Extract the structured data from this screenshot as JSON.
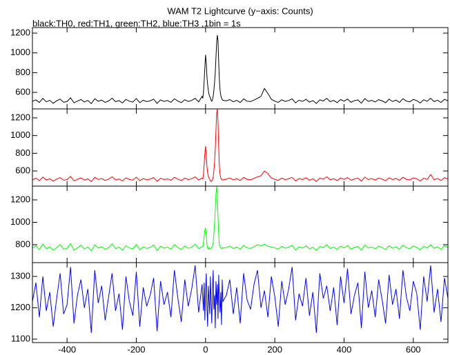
{
  "chart_data": {
    "type": "line",
    "title": "WAM T2 Lightcurve (y−axis: Counts)",
    "subtitle": "black:TH0, red:TH1, green:TH2, blue:TH3 ,1bin = 1s",
    "xlim": [
      -500,
      700
    ],
    "xticks": [
      -400,
      -200,
      0,
      200,
      400,
      600
    ],
    "x": [
      -500,
      -490,
      -480,
      -470,
      -460,
      -450,
      -440,
      -430,
      -420,
      -410,
      -400,
      -390,
      -380,
      -370,
      -360,
      -350,
      -340,
      -330,
      -320,
      -310,
      -300,
      -290,
      -280,
      -270,
      -260,
      -250,
      -240,
      -230,
      -220,
      -210,
      -200,
      -190,
      -180,
      -170,
      -160,
      -150,
      -140,
      -130,
      -120,
      -110,
      -100,
      -90,
      -80,
      -70,
      -60,
      -50,
      -40,
      -30,
      -20,
      -10,
      -8,
      -6,
      -4,
      -2,
      0,
      2,
      4,
      6,
      8,
      10,
      12,
      14,
      16,
      18,
      20,
      22,
      24,
      26,
      28,
      30,
      32,
      34,
      36,
      38,
      40,
      42,
      44,
      46,
      48,
      50,
      60,
      70,
      80,
      90,
      100,
      110,
      120,
      130,
      140,
      150,
      160,
      170,
      180,
      190,
      200,
      210,
      220,
      230,
      240,
      250,
      260,
      270,
      280,
      290,
      300,
      310,
      320,
      330,
      340,
      350,
      360,
      370,
      380,
      390,
      400,
      410,
      420,
      430,
      440,
      450,
      460,
      470,
      480,
      490,
      500,
      510,
      520,
      530,
      540,
      550,
      560,
      570,
      580,
      590,
      600,
      610,
      620,
      630,
      640,
      650,
      660,
      670,
      680,
      690,
      700
    ],
    "panels": [
      {
        "ylim": [
          433,
          1256
        ],
        "yticks": [
          600,
          800,
          1000,
          1200
        ],
        "series": [
          {
            "color": "#000000",
            "values": [
              510,
              525,
              498,
              540,
              505,
              520,
              490,
              515,
              532,
              500,
              508,
              545,
              495,
              512,
              528,
              503,
              519,
              487,
              536,
              510,
              522,
              499,
              514,
              541,
              506,
              517,
              493,
              529,
              511,
              502,
              538,
              496,
              521,
              507,
              515,
              532,
              489,
              524,
              509,
              518,
              500,
              535,
              513,
              497,
              526,
              508,
              519,
              540,
              504,
              560,
              540,
              600,
              720,
              850,
              980,
              900,
              760,
              680,
              620,
              580,
              560,
              540,
              520,
              510,
              530,
              560,
              620,
              700,
              800,
              950,
              1100,
              1180,
              1120,
              900,
              720,
              620,
              570,
              545,
              530,
              520,
              515,
              528,
              505,
              520,
              498,
              534,
              511,
              507,
              523,
              540,
              560,
              640,
              590,
              530,
              512,
              499,
              526,
              508,
              518,
              535,
              494,
              521,
              509,
              530,
              502,
              517,
              488,
              525,
              513,
              540,
              506,
              519,
              497,
              528,
              511,
              533,
              500,
              516,
              524,
              491,
              538,
              509,
              520,
              503,
              527,
              514,
              496,
              531,
              508,
              522,
              499,
              536,
              512,
              505,
              529,
              517,
              493,
              526,
              510,
              540,
              507,
              521,
              498,
              530,
              515
            ]
          }
        ]
      },
      {
        "ylim": [
          429,
          1301
        ],
        "yticks": [
          600,
          800,
          1000,
          1200
        ],
        "series": [
          {
            "color": "#ff0000",
            "values": [
              500,
              518,
              490,
              532,
              497,
              512,
              485,
              508,
              526,
              495,
              503,
              538,
              488,
              506,
              522,
              497,
              511,
              480,
              529,
              504,
              515,
              493,
              508,
              534,
              500,
              510,
              487,
              522,
              505,
              496,
              531,
              490,
              514,
              501,
              509,
              525,
              483,
              517,
              503,
              511,
              494,
              528,
              507,
              491,
              519,
              502,
              513,
              533,
              498,
              520,
              510,
              560,
              680,
              800,
              880,
              780,
              650,
              580,
              540,
              520,
              505,
              490,
              480,
              485,
              500,
              530,
              600,
              700,
              850,
              1050,
              1250,
              1300,
              1150,
              850,
              650,
              560,
              520,
              505,
              498,
              500,
              508,
              521,
              499,
              514,
              492,
              527,
              505,
              500,
              517,
              533,
              545,
              600,
              570,
              520,
              506,
              493,
              519,
              502,
              512,
              528,
              488,
              515,
              503,
              523,
              496,
              511,
              482,
              519,
              507,
              534,
              500,
              513,
              491,
              521,
              505,
              526,
              494,
              510,
              518,
              485,
              531,
              503,
              514,
              497,
              520,
              508,
              490,
              524,
              502,
              516,
              493,
              529,
              506,
              499,
              522,
              511,
              487,
              519,
              504,
              560,
              501,
              515,
              492,
              524,
              509
            ]
          }
        ]
      },
      {
        "ylim": [
          640,
          1323
        ],
        "yticks": [
          800,
          1000,
          1200
        ],
        "series": [
          {
            "color": "#00ff00",
            "values": [
              770,
              790,
              755,
              805,
              765,
              780,
              750,
              775,
              800,
              760,
              768,
              810,
              752,
              772,
              795,
              763,
              779,
              745,
              800,
              770,
              782,
              758,
              774,
              808,
              765,
              777,
              752,
              790,
              771,
              762,
              803,
              755,
              781,
              767,
              775,
              797,
              748,
              786,
              769,
              778,
              760,
              800,
              773,
              757,
              788,
              768,
              779,
              805,
              764,
              782,
              780,
              820,
              880,
              930,
              950,
              880,
              800,
              770,
              760,
              775,
              765,
              760,
              770,
              780,
              790,
              820,
              900,
              1000,
              1100,
              1250,
              1320,
              1250,
              1050,
              880,
              800,
              780,
              770,
              765,
              775,
              770,
              775,
              788,
              765,
              780,
              758,
              795,
              771,
              767,
              783,
              800,
              790,
              805,
              785,
              780,
              772,
              759,
              786,
              768,
              778,
              795,
              754,
              781,
              769,
              790,
              762,
              777,
              748,
              785,
              773,
              800,
              766,
              779,
              757,
              788,
              771,
              793,
              760,
              776,
              784,
              751,
              798,
              769,
              780,
              763,
              787,
              774,
              756,
              791,
              768,
              782,
              759,
              796,
              772,
              765,
              789,
              777,
              753,
              786,
              770,
              800,
              767,
              781,
              758,
              790,
              775
            ]
          }
        ]
      },
      {
        "ylim": [
          1089,
          1344
        ],
        "yticks": [
          1100,
          1200,
          1300
        ],
        "series": [
          {
            "color": "#0000ff",
            "values": [
              1220,
              1280,
              1170,
              1300,
              1190,
              1250,
              1140,
              1230,
              1310,
              1180,
              1210,
              1330,
              1150,
              1240,
              1290,
              1200,
              1260,
              1120,
              1320,
              1215,
              1270,
              1160,
              1235,
              1310,
              1190,
              1245,
              1130,
              1300,
              1220,
              1175,
              1315,
              1140,
              1265,
              1205,
              1240,
              1295,
              1125,
              1285,
              1210,
              1250,
              1170,
              1320,
              1230,
              1155,
              1290,
              1205,
              1260,
              1335,
              1185,
              1275,
              1230,
              1190,
              1280,
              1160,
              1250,
              1310,
              1200,
              1140,
              1270,
              1225,
              1180,
              1300,
              1215,
              1150,
              1260,
              1320,
              1195,
              1240,
              1135,
              1285,
              1210,
              1275,
              1165,
              1305,
              1230,
              1185,
              1250,
              1145,
              1290,
              1220,
              1240,
              1290,
              1180,
              1265,
              1150,
              1310,
              1225,
              1195,
              1275,
              1320,
              1200,
              1255,
              1170,
              1300,
              1235,
              1140,
              1285,
              1210,
              1260,
              1330,
              1160,
              1245,
              1205,
              1295,
              1175,
              1250,
              1120,
              1310,
              1230,
              1270,
              1190,
              1265,
              1145,
              1300,
              1215,
              1325,
              1180,
              1240,
              1280,
              1135,
              1315,
              1200,
              1255,
              1170,
              1290,
              1225,
              1150,
              1305,
              1210,
              1260,
              1165,
              1320,
              1235,
              1190,
              1285,
              1245,
              1130,
              1300,
              1220,
              1335,
              1185,
              1260,
              1155,
              1295,
              1230
            ]
          }
        ]
      }
    ]
  }
}
